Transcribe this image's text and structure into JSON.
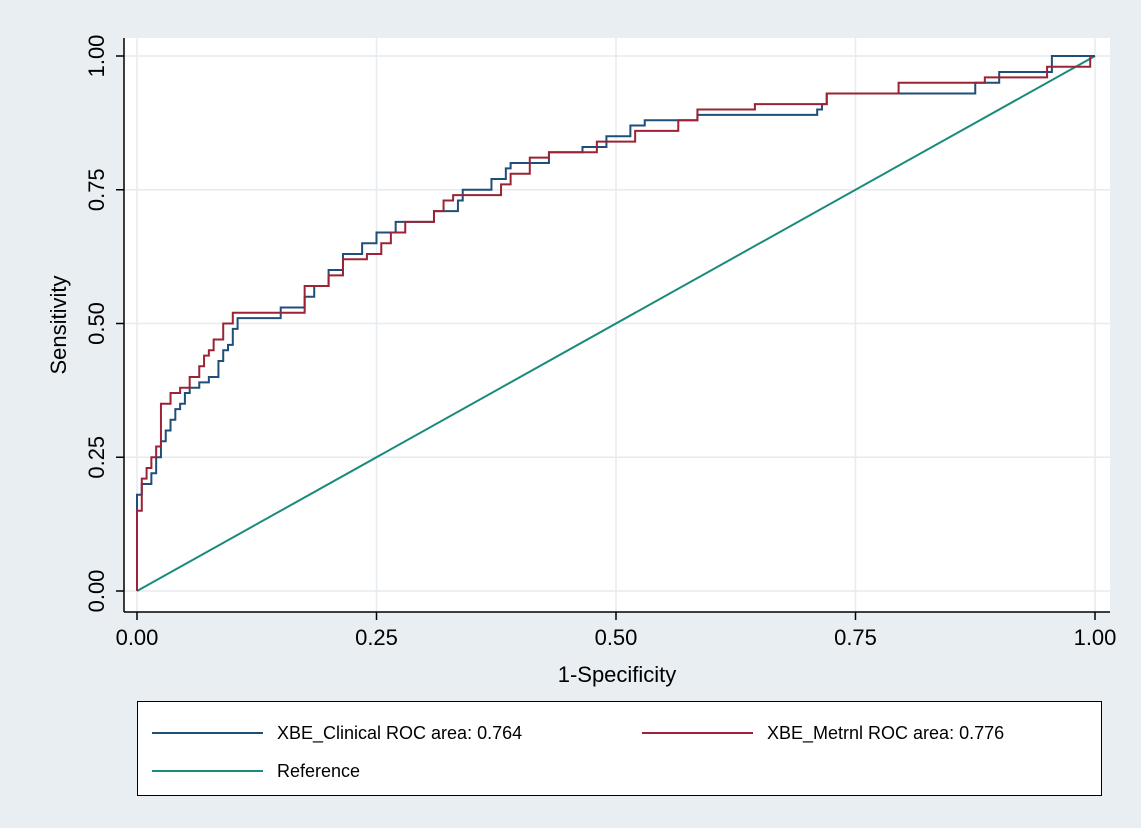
{
  "chart_data": {
    "type": "line",
    "title": "",
    "xlabel": "1-Specificity",
    "ylabel": "Sensitivity",
    "xlim": [
      0,
      1
    ],
    "ylim": [
      0,
      1
    ],
    "x_ticks": [
      "0.00",
      "0.25",
      "0.50",
      "0.75",
      "1.00"
    ],
    "y_ticks": [
      "0.00",
      "0.25",
      "0.50",
      "0.75",
      "1.00"
    ],
    "grid": true,
    "legend_placement": "bottom",
    "series": [
      {
        "name": "XBE_Clinical ROC area: 0.764",
        "color": "#1f4e79",
        "step": true,
        "x": [
          0.0,
          0.0,
          0.005,
          0.005,
          0.015,
          0.015,
          0.02,
          0.02,
          0.025,
          0.025,
          0.03,
          0.03,
          0.035,
          0.035,
          0.04,
          0.04,
          0.045,
          0.045,
          0.05,
          0.05,
          0.055,
          0.055,
          0.065,
          0.065,
          0.075,
          0.075,
          0.085,
          0.085,
          0.09,
          0.09,
          0.095,
          0.095,
          0.1,
          0.1,
          0.105,
          0.105,
          0.12,
          0.15,
          0.15,
          0.175,
          0.175,
          0.185,
          0.185,
          0.2,
          0.2,
          0.215,
          0.215,
          0.235,
          0.235,
          0.25,
          0.25,
          0.27,
          0.27,
          0.31,
          0.31,
          0.335,
          0.335,
          0.34,
          0.34,
          0.37,
          0.37,
          0.385,
          0.385,
          0.39,
          0.39,
          0.43,
          0.43,
          0.465,
          0.465,
          0.49,
          0.49,
          0.515,
          0.515,
          0.53,
          0.53,
          0.585,
          0.585,
          0.71,
          0.71,
          0.715,
          0.715,
          0.72,
          0.72,
          0.875,
          0.875,
          0.9,
          0.9,
          0.955,
          0.955,
          1.0
        ],
        "y": [
          0.0,
          0.18,
          0.18,
          0.2,
          0.2,
          0.22,
          0.22,
          0.25,
          0.25,
          0.28,
          0.28,
          0.3,
          0.3,
          0.32,
          0.32,
          0.34,
          0.34,
          0.35,
          0.35,
          0.37,
          0.37,
          0.38,
          0.38,
          0.39,
          0.39,
          0.4,
          0.4,
          0.43,
          0.43,
          0.45,
          0.45,
          0.46,
          0.46,
          0.49,
          0.49,
          0.51,
          0.51,
          0.51,
          0.53,
          0.53,
          0.55,
          0.55,
          0.57,
          0.57,
          0.6,
          0.6,
          0.63,
          0.63,
          0.65,
          0.65,
          0.67,
          0.67,
          0.69,
          0.69,
          0.71,
          0.71,
          0.73,
          0.73,
          0.75,
          0.75,
          0.77,
          0.77,
          0.79,
          0.79,
          0.8,
          0.8,
          0.82,
          0.82,
          0.83,
          0.83,
          0.85,
          0.85,
          0.87,
          0.87,
          0.88,
          0.88,
          0.89,
          0.89,
          0.9,
          0.9,
          0.91,
          0.91,
          0.93,
          0.93,
          0.95,
          0.95,
          0.97,
          0.97,
          1.0,
          1.0
        ]
      },
      {
        "name": "XBE_Metrnl ROC area: 0.776",
        "color": "#9b2335",
        "step": true,
        "x": [
          0.0,
          0.0,
          0.005,
          0.005,
          0.01,
          0.01,
          0.015,
          0.015,
          0.02,
          0.02,
          0.025,
          0.025,
          0.035,
          0.035,
          0.045,
          0.045,
          0.055,
          0.055,
          0.065,
          0.065,
          0.07,
          0.07,
          0.075,
          0.075,
          0.08,
          0.08,
          0.09,
          0.09,
          0.1,
          0.1,
          0.175,
          0.175,
          0.2,
          0.2,
          0.215,
          0.215,
          0.24,
          0.24,
          0.255,
          0.255,
          0.265,
          0.265,
          0.28,
          0.28,
          0.31,
          0.31,
          0.32,
          0.32,
          0.33,
          0.33,
          0.38,
          0.38,
          0.39,
          0.39,
          0.41,
          0.41,
          0.43,
          0.43,
          0.48,
          0.48,
          0.52,
          0.52,
          0.565,
          0.565,
          0.585,
          0.585,
          0.645,
          0.645,
          0.72,
          0.72,
          0.795,
          0.795,
          0.885,
          0.885,
          0.95,
          0.95,
          0.995,
          0.995
        ],
        "y": [
          0.0,
          0.15,
          0.15,
          0.21,
          0.21,
          0.23,
          0.23,
          0.25,
          0.25,
          0.27,
          0.27,
          0.35,
          0.35,
          0.37,
          0.37,
          0.38,
          0.38,
          0.4,
          0.4,
          0.42,
          0.42,
          0.44,
          0.44,
          0.45,
          0.45,
          0.47,
          0.47,
          0.5,
          0.5,
          0.52,
          0.52,
          0.57,
          0.57,
          0.59,
          0.59,
          0.62,
          0.62,
          0.63,
          0.63,
          0.65,
          0.65,
          0.67,
          0.67,
          0.69,
          0.69,
          0.71,
          0.71,
          0.73,
          0.73,
          0.74,
          0.74,
          0.76,
          0.76,
          0.78,
          0.78,
          0.81,
          0.81,
          0.82,
          0.82,
          0.84,
          0.84,
          0.86,
          0.86,
          0.88,
          0.88,
          0.9,
          0.9,
          0.91,
          0.91,
          0.93,
          0.93,
          0.95,
          0.95,
          0.96,
          0.96,
          0.98,
          0.98,
          1.0
        ]
      },
      {
        "name": "Reference",
        "color": "#1a8a7a",
        "step": false,
        "x": [
          0,
          1
        ],
        "y": [
          0,
          1
        ]
      }
    ]
  }
}
